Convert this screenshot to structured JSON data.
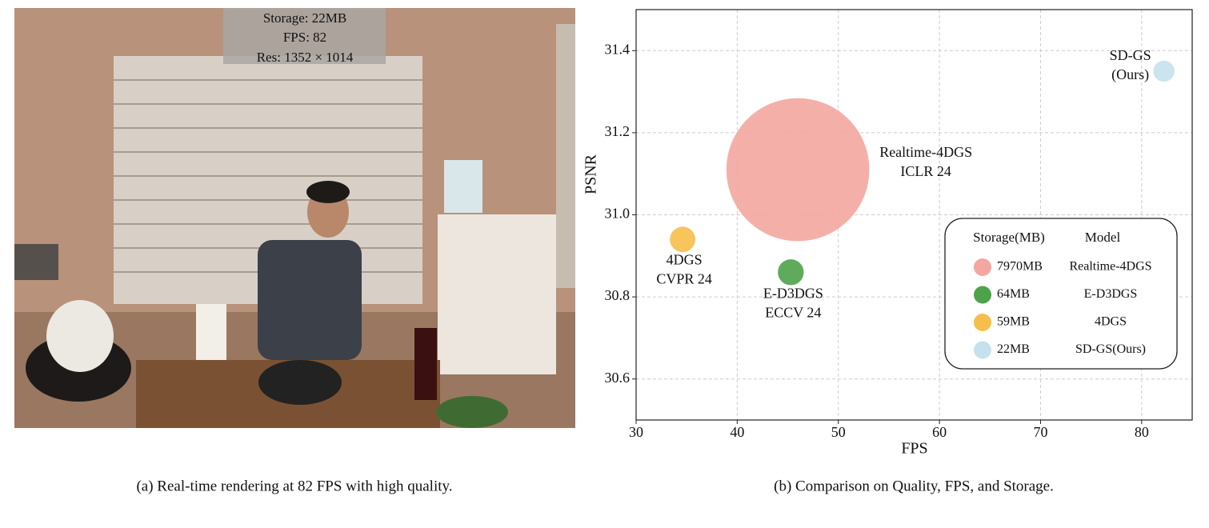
{
  "image_panel": {
    "overlay": [
      "Storage: 22MB",
      "FPS: 82",
      "Res: 1352 × 1014"
    ]
  },
  "chart_data": {
    "type": "bubble",
    "xlabel": "FPS",
    "ylabel": "PSNR",
    "xlim": [
      30,
      85
    ],
    "ylim": [
      30.5,
      31.5
    ],
    "xticks": [
      30,
      40,
      50,
      60,
      70,
      80
    ],
    "yticks": [
      30.6,
      30.8,
      {
        "value": 31,
        "label": "31.0"
      },
      31.2,
      31.4
    ],
    "grid": true,
    "legend_headers": [
      "Storage(MB)",
      "Model"
    ],
    "series": [
      {
        "name": "Realtime-4DGS",
        "color": "#f4a6a0",
        "x": [
          46.0
        ],
        "values": [
          31.11
        ],
        "size": [
          7970
        ],
        "size_labels": [
          "7970MB"
        ],
        "annotation": [
          "Realtime-4DGS",
          "ICLR 24"
        ]
      },
      {
        "name": "E-D3DGS",
        "color": "#4ea24a",
        "x": [
          45.3
        ],
        "values": [
          30.86
        ],
        "size": [
          64
        ],
        "size_labels": [
          "64MB"
        ],
        "annotation": [
          "E-D3DGS",
          "ECCV 24"
        ]
      },
      {
        "name": "4DGS",
        "color": "#f7be4a",
        "x": [
          34.6
        ],
        "values": [
          30.94
        ],
        "size": [
          59
        ],
        "size_labels": [
          "59MB"
        ],
        "annotation": [
          "4DGS",
          "CVPR 24"
        ]
      },
      {
        "name": "SD-GS(Ours)",
        "color": "#c6e1ee",
        "x": [
          82.2
        ],
        "values": [
          31.35
        ],
        "size": [
          22
        ],
        "size_labels": [
          "22MB"
        ],
        "annotation": [
          "SD-GS",
          "(Ours)"
        ]
      }
    ]
  },
  "captions": [
    "(a) Real-time rendering at 82 FPS with high quality.",
    "(b) Comparison on Quality, FPS, and Storage."
  ]
}
